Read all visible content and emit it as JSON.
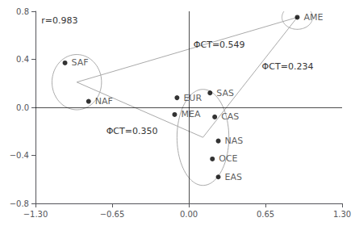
{
  "chart_data": {
    "type": "scatter",
    "labels": [
      "SAF",
      "NAF",
      "AME",
      "EUR",
      "SAS",
      "MEA",
      "CAS",
      "NAS",
      "OCE",
      "EAS"
    ],
    "x": [
      -1.05,
      -0.85,
      0.92,
      -0.1,
      0.18,
      -0.12,
      0.22,
      0.25,
      0.2,
      0.25
    ],
    "values": [
      0.37,
      0.05,
      0.75,
      0.08,
      0.12,
      -0.06,
      -0.08,
      -0.28,
      -0.43,
      -0.58
    ],
    "color": "black",
    "xlim": [
      -1.3,
      1.3
    ],
    "ylim": [
      -0.8,
      0.8
    ],
    "xticks": [
      {
        "value": -1.3,
        "label": "−1.30"
      },
      {
        "value": -0.65,
        "label": "−0.65"
      },
      {
        "value": 0.0,
        "label": "0.00"
      },
      {
        "value": 0.65,
        "label": "0.65"
      },
      {
        "value": 1.3,
        "label": "1.30"
      }
    ],
    "yticks": [
      {
        "value": -0.8,
        "label": "−0.8"
      },
      {
        "value": -0.4,
        "label": "−0.4"
      },
      {
        "value": 0.0,
        "label": "0.0"
      },
      {
        "value": 0.4,
        "label": "0.4"
      },
      {
        "value": 0.8,
        "label": "0.8"
      }
    ],
    "grid": false,
    "annotations": [
      {
        "text": "r=0.983",
        "x": -1.25,
        "y": 0.72
      },
      {
        "text": "ΦCT=0.549",
        "x": 0.04,
        "y": 0.52
      },
      {
        "text": "ΦCT=0.234",
        "x": 0.62,
        "y": 0.34
      },
      {
        "text": "ΦCT=0.350",
        "x": -0.7,
        "y": -0.2
      }
    ],
    "ellipses": {
      "color": "#aaaaaa",
      "items": [
        {
          "center": [
            -0.95,
            0.21
          ],
          "rx": 0.21,
          "ry": 0.23
        },
        {
          "center": [
            0.12,
            -0.25
          ],
          "rx": 0.22,
          "ry": 0.4
        },
        {
          "center": [
            0.92,
            0.75
          ],
          "rx": 0.13,
          "ry": 0.1
        }
      ]
    },
    "lines": {
      "color": "#aaaaaa",
      "segments": [
        [
          -0.95,
          0.21,
          0.12,
          -0.25
        ],
        [
          -0.95,
          0.21,
          0.92,
          0.75
        ],
        [
          0.12,
          -0.25,
          0.92,
          0.75
        ]
      ]
    },
    "reference_lines": {
      "color": "black",
      "x": [
        0
      ],
      "y": [
        0
      ]
    }
  }
}
